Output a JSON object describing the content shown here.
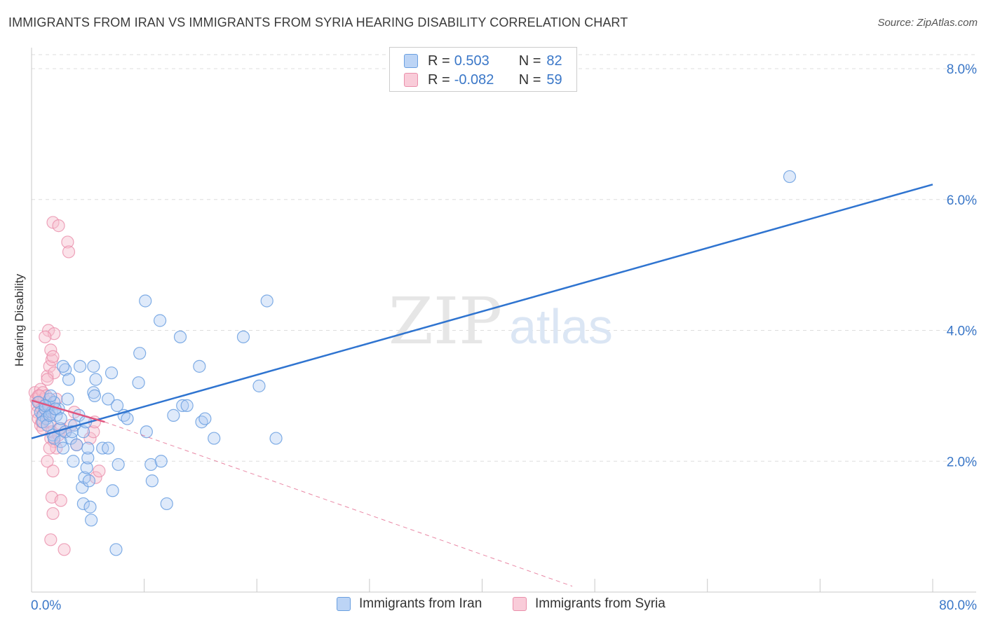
{
  "title": "IMMIGRANTS FROM IRAN VS IMMIGRANTS FROM SYRIA HEARING DISABILITY CORRELATION CHART",
  "source": "Source: ZipAtlas.com",
  "watermark": {
    "zip": "ZIP",
    "atlas": "atlas"
  },
  "legend": {
    "iran": {
      "r_label": "R =",
      "r_value": "0.503",
      "n_label": "N =",
      "n_value": "82"
    },
    "syria": {
      "r_label": "R =",
      "r_value": "-0.082",
      "n_label": "N =",
      "n_value": "59"
    }
  },
  "bottom_legend": {
    "iran": "Immigrants from Iran",
    "syria": "Immigrants from Syria"
  },
  "colors": {
    "iran_fill": "#aecbf2",
    "iran_stroke": "#6a9fe0",
    "iran_line": "#2f74d0",
    "syria_fill": "#f6bfcf",
    "syria_stroke": "#ea8fab",
    "syria_line": "#e0557f",
    "axis_text": "#3a77c8",
    "grid": "#dddddd"
  },
  "chart_data": {
    "type": "scatter",
    "title": "IMMIGRANTS FROM IRAN VS IMMIGRANTS FROM SYRIA HEARING DISABILITY CORRELATION CHART",
    "xlabel": "",
    "ylabel": "Hearing Disability",
    "xlim": [
      0,
      80
    ],
    "ylim": [
      0,
      8.3
    ],
    "x_tick_labels": [
      "0.0%",
      "80.0%"
    ],
    "y_ticks": [
      2,
      4,
      6,
      8
    ],
    "y_tick_labels": [
      "2.0%",
      "4.0%",
      "6.0%",
      "8.0%"
    ],
    "grid": true,
    "legend_position": "top-center",
    "series": [
      {
        "name": "Immigrants from Iran",
        "r": 0.503,
        "n": 82,
        "trend": {
          "x": [
            0,
            80
          ],
          "y": [
            2.35,
            6.23
          ],
          "style": "solid"
        },
        "points": [
          [
            0.6,
            2.9
          ],
          [
            0.8,
            2.75
          ],
          [
            1.0,
            2.7
          ],
          [
            1.2,
            2.8
          ],
          [
            1.3,
            2.65
          ],
          [
            1.5,
            2.85
          ],
          [
            1.6,
            2.95
          ],
          [
            1.8,
            2.75
          ],
          [
            1.0,
            2.6
          ],
          [
            1.4,
            2.55
          ],
          [
            1.9,
            2.4
          ],
          [
            2.0,
            2.35
          ],
          [
            2.2,
            2.7
          ],
          [
            2.4,
            2.8
          ],
          [
            2.5,
            2.5
          ],
          [
            2.6,
            2.3
          ],
          [
            2.8,
            2.2
          ],
          [
            3.0,
            2.45
          ],
          [
            3.0,
            3.4
          ],
          [
            2.8,
            3.45
          ],
          [
            3.2,
            2.95
          ],
          [
            3.3,
            3.25
          ],
          [
            1.6,
            2.7
          ],
          [
            2.0,
            2.9
          ],
          [
            3.5,
            2.35
          ],
          [
            3.7,
            2.0
          ],
          [
            3.8,
            2.55
          ],
          [
            4.0,
            2.25
          ],
          [
            4.2,
            2.7
          ],
          [
            4.3,
            3.45
          ],
          [
            4.5,
            1.6
          ],
          [
            4.6,
            1.35
          ],
          [
            4.6,
            2.45
          ],
          [
            4.8,
            2.6
          ],
          [
            4.7,
            1.75
          ],
          [
            4.9,
            1.9
          ],
          [
            5.0,
            2.05
          ],
          [
            5.1,
            1.7
          ],
          [
            5.2,
            1.3
          ],
          [
            5.3,
            1.1
          ],
          [
            5.0,
            2.2
          ],
          [
            5.5,
            3.45
          ],
          [
            5.5,
            3.05
          ],
          [
            5.6,
            3.0
          ],
          [
            5.7,
            3.25
          ],
          [
            6.3,
            2.2
          ],
          [
            6.8,
            2.2
          ],
          [
            6.8,
            2.95
          ],
          [
            7.1,
            3.35
          ],
          [
            7.2,
            1.55
          ],
          [
            7.5,
            0.65
          ],
          [
            7.6,
            2.85
          ],
          [
            7.7,
            1.95
          ],
          [
            8.2,
            2.7
          ],
          [
            8.5,
            2.65
          ],
          [
            9.5,
            3.2
          ],
          [
            9.6,
            3.65
          ],
          [
            10.1,
            4.45
          ],
          [
            10.2,
            2.45
          ],
          [
            10.6,
            1.95
          ],
          [
            10.7,
            1.7
          ],
          [
            11.4,
            4.15
          ],
          [
            11.5,
            2.0
          ],
          [
            12.0,
            1.35
          ],
          [
            12.6,
            2.7
          ],
          [
            13.2,
            3.9
          ],
          [
            13.4,
            2.85
          ],
          [
            13.8,
            2.85
          ],
          [
            14.9,
            3.45
          ],
          [
            15.1,
            2.6
          ],
          [
            15.4,
            2.65
          ],
          [
            16.2,
            2.35
          ],
          [
            18.8,
            3.9
          ],
          [
            20.2,
            3.15
          ],
          [
            20.9,
            4.45
          ],
          [
            21.7,
            2.35
          ],
          [
            67.3,
            6.35
          ],
          [
            2.1,
            2.8
          ],
          [
            1.2,
            2.85
          ],
          [
            2.6,
            2.65
          ],
          [
            3.6,
            2.45
          ],
          [
            1.7,
            3.0
          ]
        ]
      },
      {
        "name": "Immigrants from Syria",
        "r": -0.082,
        "n": 59,
        "trend": {
          "x": [
            0,
            6.5
          ],
          "y": [
            2.93,
            2.6
          ],
          "style": "solid",
          "extension": {
            "x": [
              6.5,
              48
            ],
            "y": [
              2.6,
              0.09
            ],
            "style": "dashed"
          }
        },
        "points": [
          [
            0.3,
            3.05
          ],
          [
            0.4,
            2.95
          ],
          [
            0.5,
            2.85
          ],
          [
            0.5,
            2.75
          ],
          [
            0.6,
            3.0
          ],
          [
            0.7,
            2.9
          ],
          [
            0.8,
            3.1
          ],
          [
            0.9,
            2.8
          ],
          [
            1.0,
            3.05
          ],
          [
            1.1,
            2.95
          ],
          [
            1.2,
            2.85
          ],
          [
            1.3,
            3.0
          ],
          [
            1.4,
            2.7
          ],
          [
            0.6,
            2.65
          ],
          [
            0.8,
            2.55
          ],
          [
            1.0,
            2.5
          ],
          [
            1.5,
            2.8
          ],
          [
            1.6,
            2.6
          ],
          [
            1.7,
            2.35
          ],
          [
            1.8,
            2.45
          ],
          [
            2.0,
            2.3
          ],
          [
            2.2,
            2.2
          ],
          [
            2.4,
            2.4
          ],
          [
            2.6,
            2.5
          ],
          [
            1.4,
            3.3
          ],
          [
            1.6,
            3.45
          ],
          [
            1.8,
            3.55
          ],
          [
            2.0,
            3.35
          ],
          [
            1.5,
            4.0
          ],
          [
            1.7,
            3.7
          ],
          [
            1.9,
            3.6
          ],
          [
            2.0,
            3.95
          ],
          [
            1.9,
            5.65
          ],
          [
            2.4,
            5.6
          ],
          [
            3.2,
            5.35
          ],
          [
            3.3,
            5.2
          ],
          [
            1.2,
            3.9
          ],
          [
            1.4,
            3.25
          ],
          [
            1.6,
            2.2
          ],
          [
            1.4,
            2.0
          ],
          [
            1.9,
            1.85
          ],
          [
            1.8,
            1.45
          ],
          [
            1.9,
            1.2
          ],
          [
            1.7,
            0.8
          ],
          [
            2.9,
            0.65
          ],
          [
            2.6,
            1.4
          ],
          [
            3.0,
            2.45
          ],
          [
            3.5,
            2.55
          ],
          [
            4.0,
            2.25
          ],
          [
            5.2,
            2.35
          ],
          [
            5.5,
            2.45
          ],
          [
            5.6,
            2.6
          ],
          [
            5.7,
            1.75
          ],
          [
            6.0,
            1.85
          ],
          [
            3.8,
            2.75
          ],
          [
            2.2,
            2.95
          ],
          [
            0.9,
            2.6
          ],
          [
            1.1,
            2.75
          ],
          [
            0.7,
            3.0
          ]
        ]
      }
    ]
  }
}
